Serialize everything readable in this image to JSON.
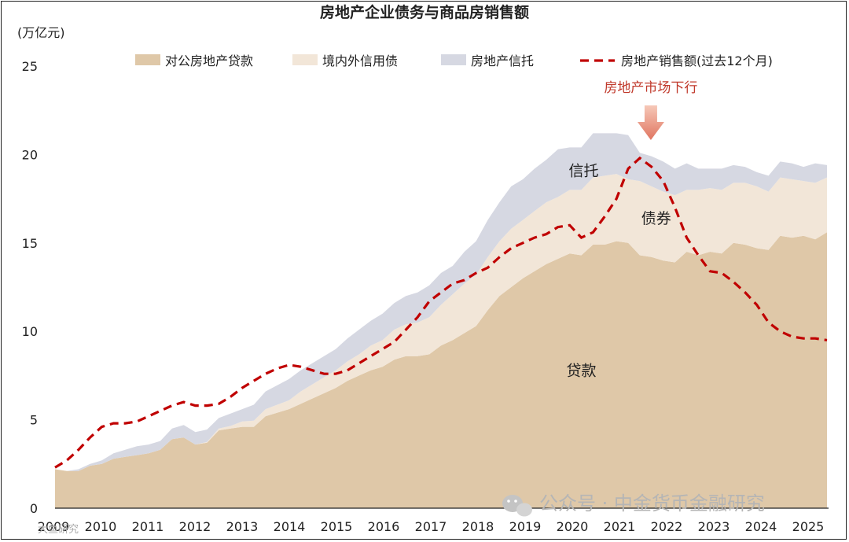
{
  "chart_data": {
    "type": "area",
    "title": "房地产企业债务与商品房销售额",
    "ylabel": "(万亿元)",
    "ylim": [
      0,
      25
    ],
    "yticks": [
      "0",
      "5",
      "10",
      "15",
      "20",
      "25"
    ],
    "xticks": [
      "2009",
      "2010",
      "2011",
      "2012",
      "2013",
      "2014",
      "2015",
      "2016",
      "2017",
      "2018",
      "2019",
      "2020",
      "2021",
      "2022",
      "2023",
      "2024",
      "2025"
    ],
    "legend_position": "top",
    "stacked": true,
    "x": [
      2009.0,
      2009.25,
      2009.5,
      2009.75,
      2010.0,
      2010.25,
      2010.5,
      2010.75,
      2011.0,
      2011.25,
      2011.5,
      2011.75,
      2012.0,
      2012.25,
      2012.5,
      2012.75,
      2013.0,
      2013.25,
      2013.5,
      2013.75,
      2014.0,
      2014.25,
      2014.5,
      2014.75,
      2015.0,
      2015.25,
      2015.5,
      2015.75,
      2016.0,
      2016.25,
      2016.5,
      2016.75,
      2017.0,
      2017.25,
      2017.5,
      2017.75,
      2018.0,
      2018.25,
      2018.5,
      2018.75,
      2019.0,
      2019.25,
      2019.5,
      2019.75,
      2020.0,
      2020.25,
      2020.5,
      2020.75,
      2021.0,
      2021.25,
      2021.5,
      2021.75,
      2022.0,
      2022.25,
      2022.5,
      2022.75,
      2023.0,
      2023.25,
      2023.5,
      2023.75,
      2024.0,
      2024.25,
      2024.5,
      2024.75,
      2025.0,
      2025.25,
      2025.5
    ],
    "series": [
      {
        "name": "对公房地产贷款",
        "kind": "area",
        "color": "#dfc8a8",
        "values": [
          2.2,
          2.1,
          2.1,
          2.4,
          2.5,
          2.8,
          2.9,
          3.0,
          3.1,
          3.3,
          3.9,
          4.0,
          3.6,
          3.7,
          4.4,
          4.5,
          4.6,
          4.6,
          5.2,
          5.4,
          5.6,
          5.9,
          6.2,
          6.5,
          6.8,
          7.2,
          7.5,
          7.8,
          8.0,
          8.4,
          8.6,
          8.6,
          8.7,
          9.2,
          9.5,
          9.9,
          10.3,
          11.2,
          12.0,
          12.5,
          13.0,
          13.4,
          13.8,
          14.1,
          14.4,
          14.3,
          14.9,
          14.9,
          15.1,
          15.0,
          14.3,
          14.2,
          14.0,
          13.9,
          14.5,
          14.3,
          14.5,
          14.4,
          15.0,
          14.9,
          14.7,
          14.6,
          15.4,
          15.3,
          15.4,
          15.2,
          15.6
        ]
      },
      {
        "name": "境内外信用债",
        "kind": "area",
        "color": "#f2e6d8",
        "values": [
          0.0,
          0.0,
          0.0,
          0.0,
          0.0,
          0.0,
          0.0,
          0.0,
          0.0,
          0.0,
          0.0,
          0.0,
          0.0,
          0.05,
          0.1,
          0.15,
          0.3,
          0.35,
          0.4,
          0.45,
          0.5,
          0.7,
          0.8,
          0.9,
          1.0,
          1.1,
          1.2,
          1.4,
          1.5,
          1.7,
          1.8,
          1.9,
          2.1,
          2.3,
          2.6,
          2.8,
          2.9,
          3.0,
          3.1,
          3.3,
          3.3,
          3.4,
          3.5,
          3.5,
          3.6,
          3.7,
          3.8,
          3.9,
          3.8,
          3.6,
          4.2,
          4.0,
          3.9,
          3.8,
          3.5,
          3.7,
          3.6,
          3.6,
          3.4,
          3.5,
          3.5,
          3.3,
          3.3,
          3.3,
          3.1,
          3.2,
          3.1
        ]
      },
      {
        "name": "房地产信托",
        "kind": "area",
        "color": "#d6d8e2",
        "values": [
          0.0,
          0.0,
          0.1,
          0.1,
          0.2,
          0.3,
          0.4,
          0.5,
          0.5,
          0.5,
          0.6,
          0.7,
          0.7,
          0.7,
          0.6,
          0.7,
          0.7,
          0.9,
          1.0,
          1.1,
          1.2,
          1.2,
          1.2,
          1.2,
          1.2,
          1.3,
          1.4,
          1.4,
          1.5,
          1.5,
          1.6,
          1.7,
          1.8,
          1.8,
          1.6,
          1.8,
          1.9,
          2.1,
          2.2,
          2.4,
          2.3,
          2.4,
          2.4,
          2.7,
          2.4,
          2.4,
          2.5,
          2.4,
          2.3,
          2.5,
          1.6,
          1.7,
          1.7,
          1.5,
          1.5,
          1.2,
          1.1,
          1.2,
          1.0,
          0.9,
          0.8,
          0.9,
          0.9,
          0.9,
          0.8,
          1.1,
          0.7
        ]
      },
      {
        "name": "房地产销售额(过去12个月)",
        "kind": "line",
        "color": "#c00000",
        "values": [
          2.3,
          2.7,
          3.3,
          4.0,
          4.6,
          4.8,
          4.8,
          4.9,
          5.2,
          5.5,
          5.8,
          6.0,
          5.8,
          5.8,
          5.9,
          6.3,
          6.8,
          7.2,
          7.6,
          7.9,
          8.1,
          8.0,
          7.8,
          7.6,
          7.6,
          7.8,
          8.2,
          8.6,
          9.0,
          9.4,
          10.1,
          10.8,
          11.7,
          12.2,
          12.7,
          12.9,
          13.3,
          13.6,
          14.2,
          14.7,
          15.0,
          15.3,
          15.5,
          15.9,
          16.0,
          15.3,
          15.6,
          16.5,
          17.5,
          19.2,
          19.8,
          19.3,
          18.5,
          17.0,
          15.3,
          14.3,
          13.4,
          13.3,
          12.8,
          12.2,
          11.5,
          10.5,
          10.0,
          9.7,
          9.6,
          9.6,
          9.5
        ]
      }
    ],
    "area_labels": [
      {
        "text": "信托",
        "x": 2020.3,
        "y": 18.8
      },
      {
        "text": "债券",
        "x": 2021.85,
        "y": 16.1
      },
      {
        "text": "贷款",
        "x": 2020.25,
        "y": 7.5
      }
    ],
    "annotation": {
      "text": "房地产市场下行",
      "x": 2021.5,
      "y": 20.3
    }
  },
  "watermark": {
    "text": "公众号 · 中金货币金融研究",
    "corner_text": "大鱼研究"
  }
}
